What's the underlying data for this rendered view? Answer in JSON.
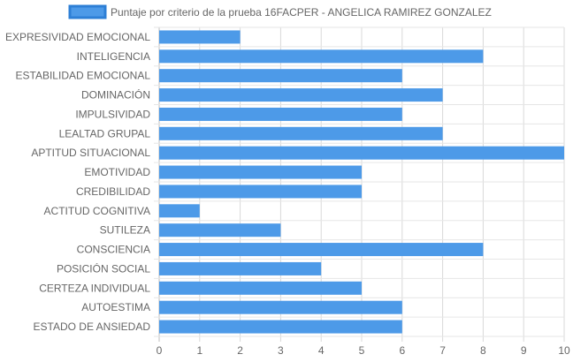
{
  "chart_data": {
    "type": "bar",
    "orientation": "horizontal",
    "categories": [
      "EXPRESIVIDAD EMOCIONAL",
      "INTELIGENCIA",
      "ESTABILIDAD EMOCIONAL",
      "DOMINACIÓN",
      "IMPULSIVIDAD",
      "LEALTAD GRUPAL",
      "APTITUD SITUACIONAL",
      "EMOTIVIDAD",
      "CREDIBILIDAD",
      "ACTITUD COGNITIVA",
      "SUTILEZA",
      "CONSCIENCIA",
      "POSICIÓN SOCIAL",
      "CERTEZA INDIVIDUAL",
      "AUTOESTIMA",
      "ESTADO DE ANSIEDAD"
    ],
    "series": [
      {
        "name": "Puntaje por criterio de la prueba 16FACPER - ANGELICA RAMIREZ GONZALEZ",
        "values": [
          2,
          8,
          6,
          7,
          6,
          7,
          10,
          5,
          5,
          1,
          3,
          8,
          4,
          5,
          6,
          6
        ],
        "color": "#4d9ae8",
        "border_color": "#2d7fd6"
      }
    ],
    "x_ticks": [
      "0",
      "1",
      "2",
      "3",
      "4",
      "5",
      "6",
      "7",
      "8",
      "9",
      "10"
    ],
    "xlim": [
      0,
      10
    ],
    "grid": true,
    "legend_position": "top"
  }
}
